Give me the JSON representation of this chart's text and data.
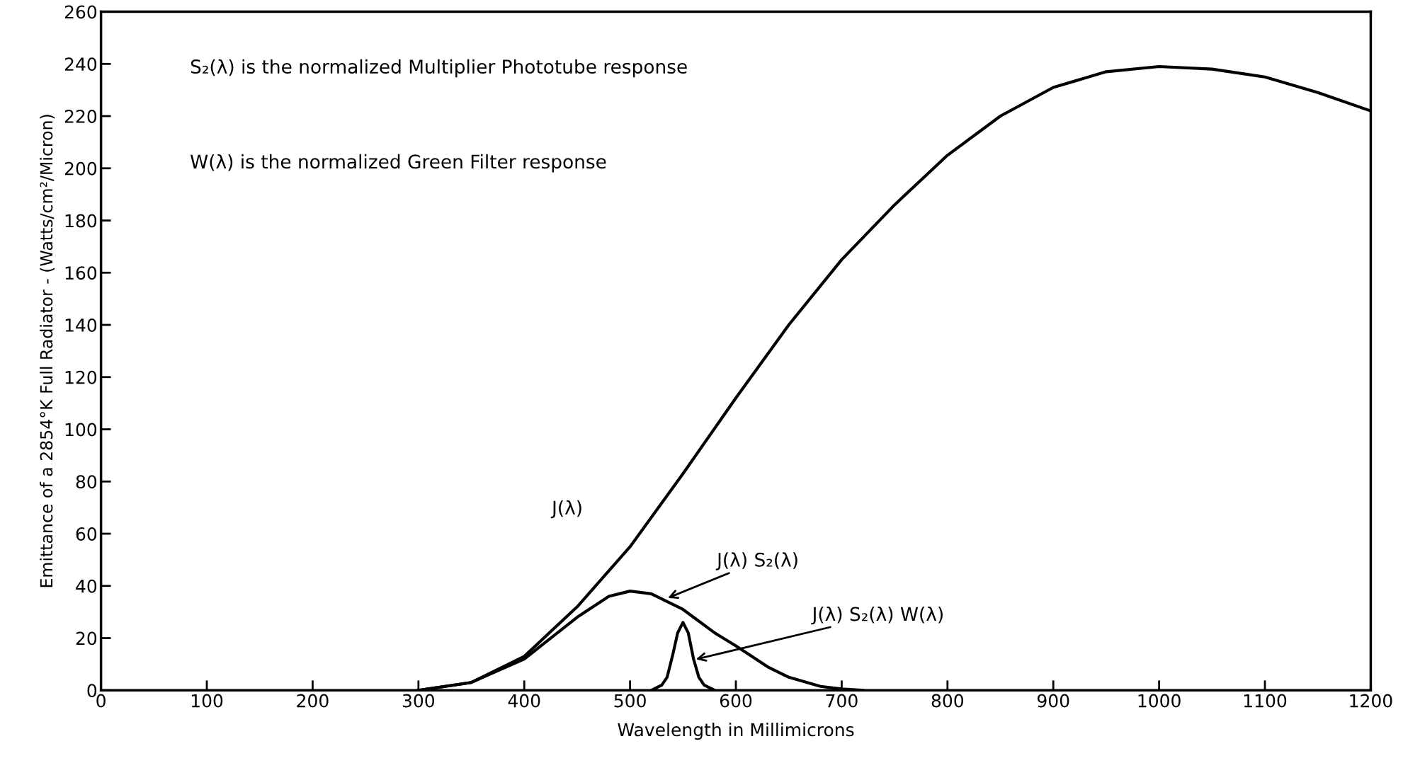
{
  "chart_data": {
    "type": "line",
    "xlabel": "Wavelength in Millimicrons",
    "ylabel": "Emittance of a 2854°K Full Radiator - (Watts/cm²/Micron)",
    "xlim": [
      0,
      1200
    ],
    "ylim": [
      0,
      260
    ],
    "xticks": [
      0,
      100,
      200,
      300,
      400,
      500,
      600,
      700,
      800,
      900,
      1000,
      1100,
      1200
    ],
    "yticks": [
      0,
      20,
      40,
      60,
      80,
      100,
      120,
      140,
      160,
      180,
      200,
      220,
      240,
      260
    ],
    "grid": false,
    "marker": "none",
    "line_style": "solid",
    "series": [
      {
        "color": "#000000",
        "x": [
          300,
          350,
          400,
          450,
          500,
          550,
          600,
          650,
          700,
          750,
          800,
          850,
          900,
          950,
          1000,
          1050,
          1100,
          1150,
          1200
        ],
        "values": [
          0,
          3,
          13,
          32,
          55,
          83,
          112,
          140,
          165,
          186,
          205,
          220,
          231,
          237,
          239,
          238,
          235,
          229,
          222
        ]
      },
      {
        "color": "#000000",
        "x": [
          300,
          350,
          400,
          450,
          480,
          500,
          520,
          550,
          580,
          600,
          630,
          650,
          680,
          700,
          720
        ],
        "values": [
          0,
          3,
          12,
          28,
          36,
          38,
          37,
          31,
          22,
          17,
          9,
          5,
          1.5,
          0.5,
          0
        ]
      },
      {
        "color": "#000000",
        "x": [
          520,
          530,
          535,
          540,
          545,
          550,
          555,
          560,
          565,
          570,
          580
        ],
        "values": [
          0,
          2,
          5,
          13,
          22,
          26,
          22,
          12,
          5,
          2,
          0
        ]
      }
    ],
    "annotations": [
      "S₂(λ) is the normalized Multiplier Phototube response",
      "W(λ) is the normalized Green Filter response",
      "J(λ)",
      "J(λ) S₂(λ)",
      "J(λ) S₂(λ) W(λ)"
    ]
  }
}
